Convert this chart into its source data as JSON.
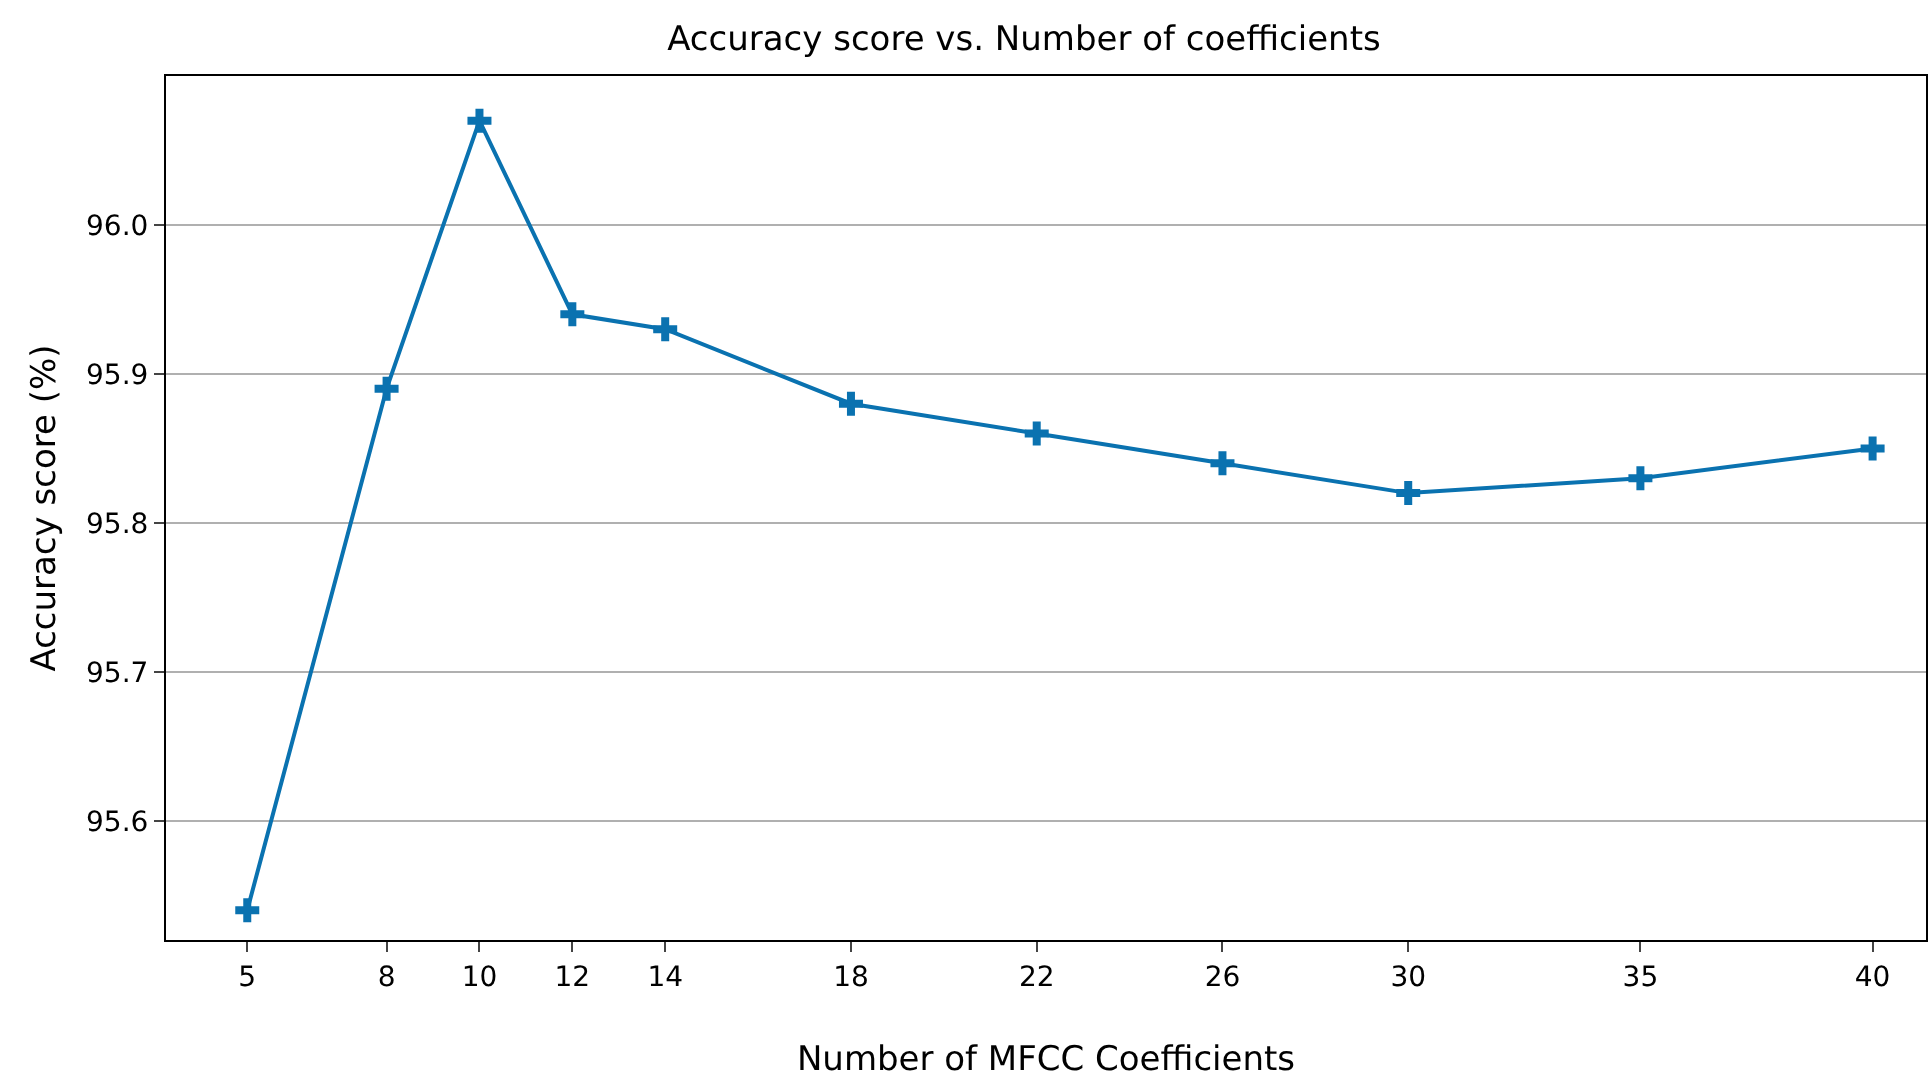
{
  "chart_data": {
    "type": "line",
    "title": "Accuracy score vs. Number of coefficients",
    "xlabel": "Number of MFCC Coefficients",
    "ylabel": "Accuracy score (%)",
    "x": [
      5,
      8,
      10,
      12,
      14,
      18,
      22,
      26,
      30,
      35,
      40
    ],
    "series": [
      {
        "color": "#0a72b0",
        "values": [
          95.54,
          95.89,
          96.07,
          95.94,
          95.93,
          95.88,
          95.86,
          95.84,
          95.82,
          95.83,
          95.85
        ]
      }
    ],
    "xlim": [
      3.25,
      41.15
    ],
    "xticks": [
      5,
      8,
      10,
      12,
      14,
      18,
      22,
      26,
      30,
      35,
      40
    ],
    "ylim": [
      95.52,
      96.1
    ],
    "yticks": [
      {
        "value": 95.6,
        "label": "95.6"
      },
      {
        "value": 95.7,
        "label": "95.7"
      },
      {
        "value": 95.8,
        "label": "95.8"
      },
      {
        "value": 95.9,
        "label": "95.9"
      },
      {
        "value": 96.0,
        "label": "96.0"
      }
    ],
    "grid": "y",
    "marker": "cross",
    "line_style": "solid"
  }
}
